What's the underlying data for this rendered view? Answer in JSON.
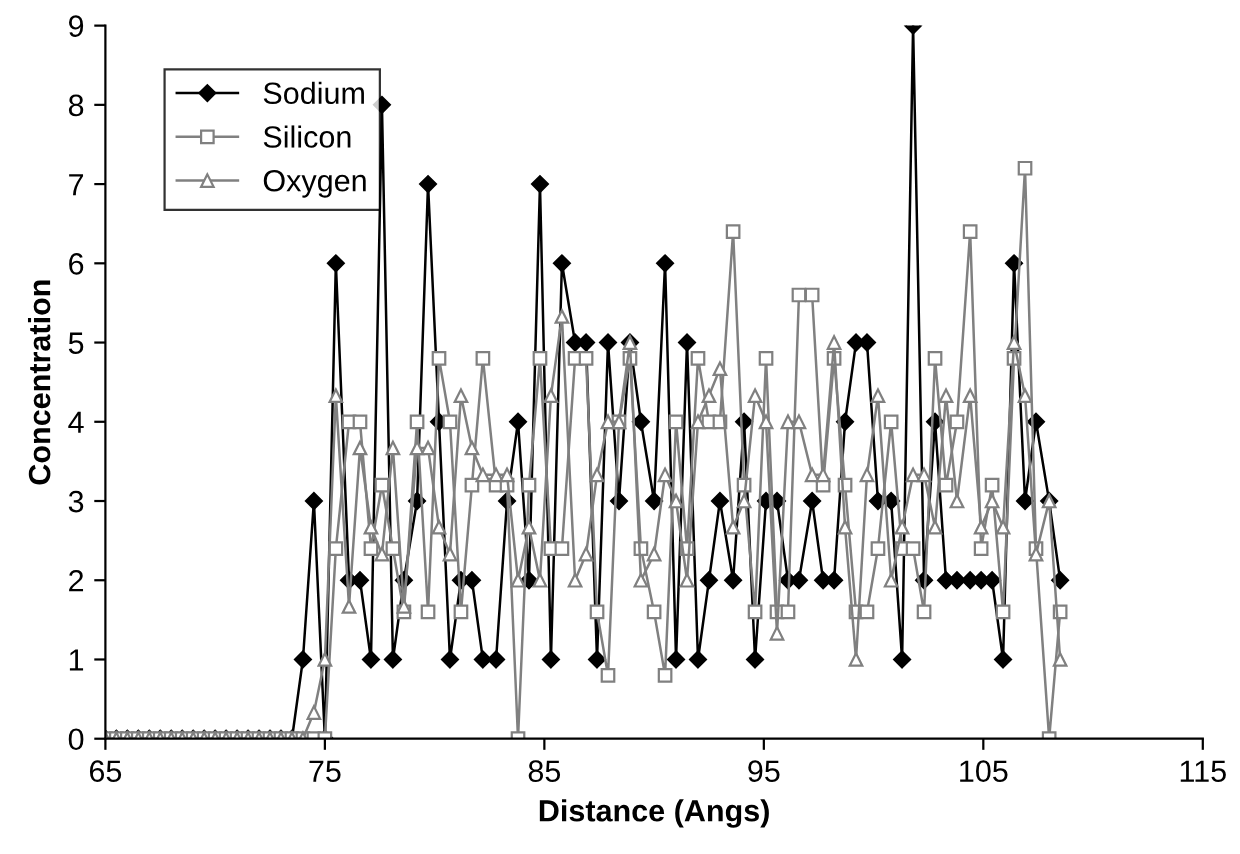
{
  "chart_data": {
    "type": "line",
    "xlabel": "Distance (Angs)",
    "ylabel": "Concentration",
    "x": [
      65.0,
      65.5,
      66.0,
      66.5,
      67.0,
      67.5,
      68.0,
      68.5,
      69.0,
      69.5,
      70.0,
      70.5,
      71.0,
      71.5,
      72.0,
      72.5,
      73.0,
      73.5,
      74.0,
      74.5,
      75.0,
      75.5,
      76.1,
      76.6,
      77.1,
      77.6,
      78.1,
      78.6,
      79.2,
      79.7,
      80.2,
      80.7,
      81.2,
      81.7,
      82.2,
      82.8,
      83.3,
      83.8,
      84.3,
      84.8,
      85.3,
      85.8,
      86.4,
      86.9,
      87.4,
      87.9,
      88.4,
      88.9,
      89.4,
      90.0,
      90.5,
      91.0,
      91.5,
      92.0,
      92.5,
      93.0,
      93.6,
      94.1,
      94.6,
      95.1,
      95.6,
      96.1,
      96.6,
      97.2,
      97.7,
      98.2,
      98.7,
      99.2,
      99.7,
      100.2,
      100.8,
      101.3,
      101.8,
      102.3,
      102.8,
      103.3,
      103.8,
      104.4,
      104.9,
      105.4,
      105.9,
      106.4,
      106.9,
      107.4,
      108.0,
      108.5
    ],
    "series": [
      {
        "name": "Sodium",
        "color": "#000000",
        "marker": "diamond",
        "values": [
          0,
          0,
          0,
          0,
          0,
          0,
          0,
          0,
          0,
          0,
          0,
          0,
          0,
          0,
          0,
          0,
          0,
          0,
          1,
          3,
          0,
          6,
          2,
          2,
          1,
          8,
          1,
          2,
          3,
          7,
          4,
          1,
          2,
          2,
          1,
          1,
          3,
          4,
          2,
          7,
          1,
          6,
          5,
          5,
          1,
          5,
          3,
          5,
          4,
          3,
          6,
          1,
          5,
          1,
          2,
          3,
          2,
          4,
          1,
          3,
          3,
          2,
          2,
          3,
          2,
          2,
          4,
          5,
          5,
          3,
          3,
          1,
          9,
          2,
          4,
          2,
          2,
          2,
          2,
          2,
          1,
          6,
          3,
          4,
          3,
          2
        ]
      },
      {
        "name": "Silicon",
        "color": "#808080",
        "marker": "square",
        "values": [
          0,
          0,
          0,
          0,
          0,
          0,
          0,
          0,
          0,
          0,
          0,
          0,
          0,
          0,
          0,
          0,
          0,
          0,
          0,
          0,
          0,
          2.4,
          4,
          4,
          2.4,
          3.2,
          2.4,
          1.6,
          4,
          1.6,
          4.8,
          4,
          1.6,
          3.2,
          4.8,
          3.2,
          3.2,
          0,
          3.2,
          4.8,
          2.4,
          2.4,
          4.8,
          4.8,
          1.6,
          0.8,
          4,
          4.8,
          2.4,
          1.6,
          0.8,
          4,
          2.4,
          4.8,
          4,
          4,
          6.4,
          3.2,
          1.6,
          4.8,
          1.6,
          1.6,
          5.6,
          5.6,
          3.2,
          4.8,
          3.2,
          1.6,
          1.6,
          2.4,
          4,
          2.4,
          2.4,
          1.6,
          4.8,
          3.2,
          4,
          6.4,
          2.4,
          3.2,
          1.6,
          4.8,
          7.2,
          2.4,
          0,
          1.6
        ]
      },
      {
        "name": "Oxygen",
        "color": "#808080",
        "marker": "triangle",
        "values": [
          0,
          0,
          0,
          0,
          0,
          0,
          0,
          0,
          0,
          0,
          0,
          0,
          0,
          0,
          0,
          0,
          0,
          0,
          0,
          0.33,
          1,
          4.33,
          1.67,
          3.67,
          2.67,
          2.33,
          3.67,
          1.67,
          3.67,
          3.67,
          2.67,
          2.33,
          4.33,
          3.67,
          3.33,
          3.33,
          3.33,
          2,
          2.67,
          2,
          4.33,
          5.33,
          2,
          2.33,
          3.33,
          4,
          4,
          5,
          2,
          2.33,
          3.33,
          3,
          2,
          4,
          4.33,
          4.67,
          2.67,
          3,
          4.33,
          4,
          1.33,
          4,
          4,
          3.33,
          3.33,
          5,
          2.67,
          1,
          3.33,
          4.33,
          2,
          2.67,
          3.33,
          3.33,
          2.67,
          4.33,
          3,
          4.33,
          2.67,
          3,
          2.67,
          5,
          4.33,
          2.33,
          3,
          1
        ]
      }
    ],
    "xlim": [
      65,
      115
    ],
    "xticks": [
      65,
      75,
      85,
      95,
      105,
      115
    ],
    "ylim": [
      0,
      9
    ],
    "yticks": [
      0,
      1,
      2,
      3,
      4,
      5,
      6,
      7,
      8,
      9
    ],
    "grid": false,
    "legend": "top left",
    "line_style": "solid"
  }
}
